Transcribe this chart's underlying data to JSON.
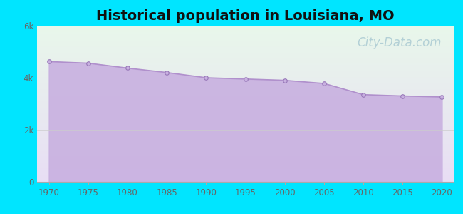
{
  "title": "Historical population in Louisiana, MO",
  "title_fontsize": 14,
  "title_fontweight": "bold",
  "background_color": "#00e5ff",
  "years": [
    1970,
    1975,
    1980,
    1985,
    1990,
    1995,
    2000,
    2005,
    2010,
    2015,
    2020
  ],
  "population": [
    4620,
    4560,
    4370,
    4200,
    4000,
    3950,
    3900,
    3780,
    3350,
    3300,
    3260
  ],
  "fill_color": "#c8b0e0",
  "fill_alpha": 0.9,
  "line_color": "#b090cc",
  "line_width": 1.2,
  "marker_color": "#c8b0e0",
  "marker_edge_color": "#9878b8",
  "marker_size": 4,
  "ylim": [
    0,
    6000
  ],
  "yticks": [
    0,
    2000,
    4000,
    6000
  ],
  "ytick_labels": [
    "0",
    "2k",
    "4k",
    "6k"
  ],
  "xlim": [
    1968.5,
    2021.5
  ],
  "xticks": [
    1970,
    1975,
    1980,
    1985,
    1990,
    1995,
    2000,
    2005,
    2010,
    2015,
    2020
  ],
  "plot_bg_color_topleft": "#e8f8ee",
  "plot_bg_color_topright": "#f0faf4",
  "plot_bg_color_bottom": "#e8e0f4",
  "watermark_text": "City-Data.com",
  "watermark_color": "#90b8c8",
  "watermark_alpha": 0.6,
  "watermark_fontsize": 12,
  "tick_label_color": "#666666",
  "tick_label_fontsize": 8.5
}
